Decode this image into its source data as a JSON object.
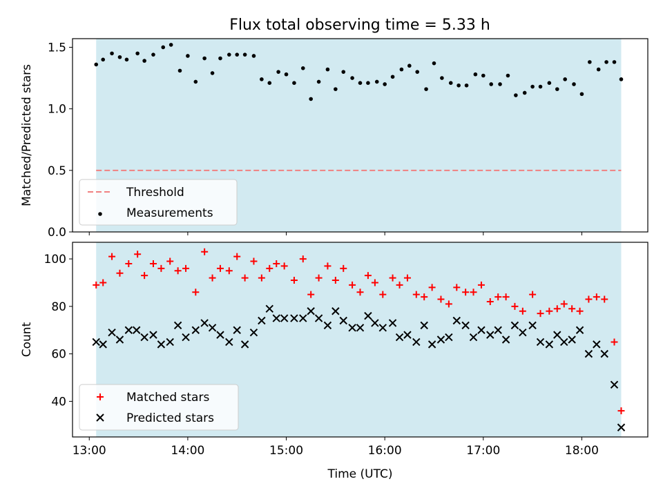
{
  "title": "Flux total observing time = 5.33 h",
  "colors": {
    "shade": "#add8e6",
    "threshold": "#f08080",
    "measurements": "#000000",
    "matched": "#ff0000",
    "predicted": "#000000"
  },
  "chart_data": [
    {
      "type": "scatter",
      "ylabel": "Matched/Predicted stars",
      "ylim": [
        0.0,
        1.57
      ],
      "xlim": [
        12.83,
        18.67
      ],
      "y_ticks": [
        0.0,
        0.5,
        1.0,
        1.5
      ],
      "y_tick_labels": [
        "0.0",
        "0.5",
        "1.0",
        "1.5"
      ],
      "shaded_span": [
        13.07,
        18.4
      ],
      "threshold": {
        "name": "Threshold",
        "value": 0.5,
        "x_range": [
          13.07,
          18.4
        ]
      },
      "legend": {
        "placement": "lower-left",
        "entries": [
          "Threshold",
          "Measurements"
        ]
      },
      "series": [
        {
          "name": "Measurements",
          "x": [
            13.07,
            13.14,
            13.23,
            13.31,
            13.38,
            13.49,
            13.56,
            13.65,
            13.75,
            13.83,
            13.92,
            14.0,
            14.08,
            14.17,
            14.25,
            14.33,
            14.42,
            14.5,
            14.58,
            14.67,
            14.75,
            14.83,
            14.92,
            15.0,
            15.08,
            15.17,
            15.25,
            15.33,
            15.42,
            15.5,
            15.58,
            15.67,
            15.75,
            15.83,
            15.92,
            16.0,
            16.08,
            16.17,
            16.25,
            16.33,
            16.42,
            16.5,
            16.58,
            16.67,
            16.75,
            16.83,
            16.92,
            17.0,
            17.08,
            17.17,
            17.25,
            17.33,
            17.42,
            17.5,
            17.58,
            17.67,
            17.75,
            17.83,
            17.92,
            18.0,
            18.08,
            18.17,
            18.25,
            18.33,
            18.4
          ],
          "y": [
            1.36,
            1.4,
            1.45,
            1.42,
            1.4,
            1.45,
            1.39,
            1.44,
            1.5,
            1.52,
            1.31,
            1.43,
            1.22,
            1.41,
            1.29,
            1.41,
            1.44,
            1.44,
            1.44,
            1.43,
            1.24,
            1.21,
            1.3,
            1.28,
            1.21,
            1.33,
            1.08,
            1.22,
            1.32,
            1.16,
            1.3,
            1.25,
            1.21,
            1.21,
            1.22,
            1.2,
            1.26,
            1.32,
            1.35,
            1.3,
            1.16,
            1.37,
            1.25,
            1.21,
            1.19,
            1.19,
            1.28,
            1.27,
            1.2,
            1.2,
            1.27,
            1.11,
            1.13,
            1.18,
            1.18,
            1.21,
            1.16,
            1.24,
            1.2,
            1.12,
            1.38,
            1.32,
            1.38,
            1.38,
            1.24
          ]
        }
      ]
    },
    {
      "type": "scatter",
      "xlabel": "Time (UTC)",
      "ylabel": "Count",
      "ylim": [
        25,
        107
      ],
      "xlim": [
        12.83,
        18.67
      ],
      "x_ticks": [
        13,
        14,
        15,
        16,
        17,
        18
      ],
      "x_tick_labels": [
        "13:00",
        "14:00",
        "15:00",
        "16:00",
        "17:00",
        "18:00"
      ],
      "y_ticks": [
        40,
        60,
        80,
        100
      ],
      "y_tick_labels": [
        "40",
        "60",
        "80",
        "100"
      ],
      "shaded_span": [
        13.07,
        18.4
      ],
      "legend": {
        "placement": "lower-left",
        "entries": [
          "Matched stars",
          "Predicted stars"
        ]
      },
      "series": [
        {
          "name": "Matched stars",
          "marker": "plus",
          "x": [
            13.07,
            13.14,
            13.23,
            13.31,
            13.4,
            13.49,
            13.56,
            13.65,
            13.73,
            13.82,
            13.9,
            13.98,
            14.08,
            14.17,
            14.25,
            14.33,
            14.42,
            14.5,
            14.58,
            14.67,
            14.75,
            14.83,
            14.9,
            14.98,
            15.08,
            15.17,
            15.25,
            15.33,
            15.42,
            15.5,
            15.58,
            15.67,
            15.75,
            15.83,
            15.9,
            15.98,
            16.08,
            16.15,
            16.23,
            16.32,
            16.4,
            16.48,
            16.57,
            16.65,
            16.73,
            16.82,
            16.9,
            16.98,
            17.07,
            17.15,
            17.23,
            17.32,
            17.4,
            17.5,
            17.58,
            17.67,
            17.75,
            17.82,
            17.9,
            17.98,
            18.07,
            18.15,
            18.23,
            18.33,
            18.4
          ],
          "y": [
            89,
            90,
            101,
            94,
            98,
            102,
            93,
            98,
            96,
            99,
            95,
            96,
            86,
            103,
            92,
            96,
            95,
            101,
            92,
            99,
            92,
            96,
            98,
            97,
            91,
            100,
            85,
            92,
            97,
            91,
            96,
            89,
            86,
            93,
            90,
            85,
            92,
            89,
            92,
            85,
            84,
            88,
            83,
            81,
            88,
            86,
            86,
            89,
            82,
            84,
            84,
            80,
            78,
            85,
            77,
            78,
            79,
            81,
            79,
            78,
            83,
            84,
            83,
            65,
            36
          ]
        },
        {
          "name": "Predicted stars",
          "marker": "x",
          "x": [
            13.07,
            13.14,
            13.23,
            13.31,
            13.4,
            13.48,
            13.56,
            13.65,
            13.73,
            13.82,
            13.9,
            13.98,
            14.08,
            14.17,
            14.25,
            14.33,
            14.42,
            14.5,
            14.58,
            14.67,
            14.75,
            14.83,
            14.9,
            14.98,
            15.08,
            15.17,
            15.25,
            15.33,
            15.42,
            15.5,
            15.58,
            15.67,
            15.75,
            15.83,
            15.9,
            15.98,
            16.08,
            16.15,
            16.23,
            16.32,
            16.4,
            16.48,
            16.57,
            16.65,
            16.73,
            16.82,
            16.9,
            16.98,
            17.07,
            17.15,
            17.23,
            17.32,
            17.4,
            17.5,
            17.58,
            17.67,
            17.75,
            17.82,
            17.9,
            17.98,
            18.07,
            18.15,
            18.23,
            18.33,
            18.4
          ],
          "y": [
            65,
            64,
            69,
            66,
            70,
            70,
            67,
            68,
            64,
            65,
            72,
            67,
            70,
            73,
            71,
            68,
            65,
            70,
            64,
            69,
            74,
            79,
            75,
            75,
            75,
            75,
            78,
            75,
            72,
            78,
            74,
            71,
            71,
            76,
            73,
            71,
            73,
            67,
            68,
            65,
            72,
            64,
            66,
            67,
            74,
            72,
            67,
            70,
            68,
            70,
            66,
            72,
            69,
            72,
            65,
            64,
            68,
            65,
            66,
            70,
            60,
            64,
            60,
            47,
            29
          ]
        }
      ]
    }
  ]
}
